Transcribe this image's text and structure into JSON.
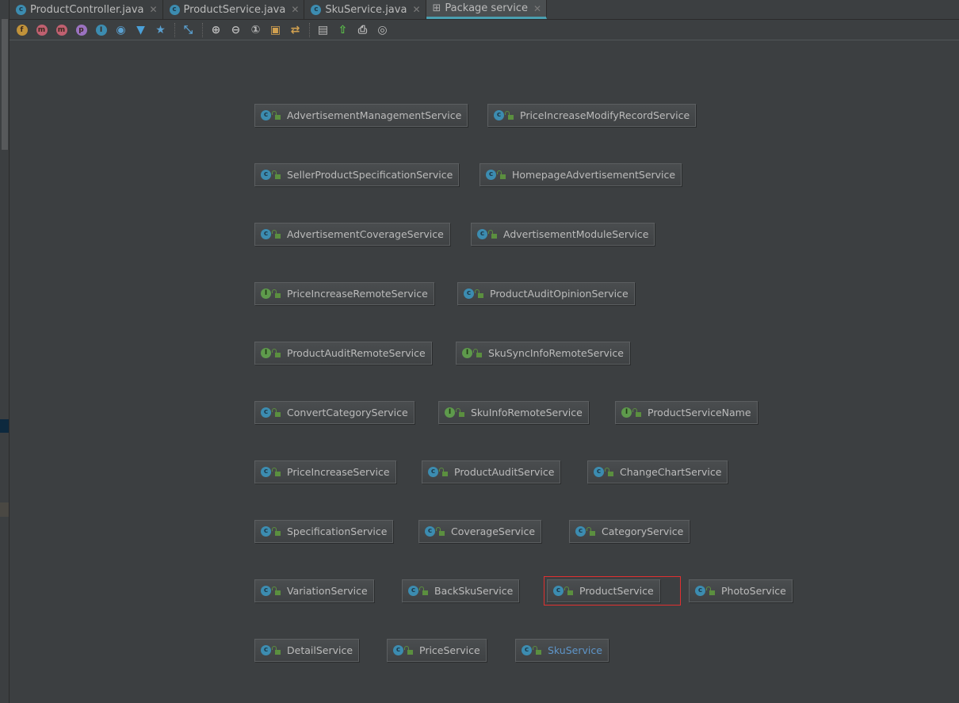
{
  "tabs": [
    {
      "label": "ProductController.java",
      "icon": "class-icon",
      "active": false
    },
    {
      "label": "ProductService.java",
      "icon": "class-icon",
      "active": false
    },
    {
      "label": "SkuService.java",
      "icon": "class-icon",
      "active": false
    },
    {
      "label": "Package service",
      "icon": "package-diagram-icon",
      "active": true
    }
  ],
  "toolbar": [
    {
      "name": "fields-icon",
      "glyph": "f",
      "color": "#c0923a"
    },
    {
      "name": "constructors-icon",
      "glyph": "m",
      "color": "#c06070"
    },
    {
      "name": "methods-icon",
      "glyph": "m",
      "color": "#c06070"
    },
    {
      "name": "properties-icon",
      "glyph": "p",
      "color": "#9a72c0"
    },
    {
      "name": "inner-classes-icon",
      "glyph": "I",
      "color": "#3c8cb0"
    },
    {
      "name": "visibility-icon",
      "glyph": "◉",
      "color": "#5aa0d0"
    },
    {
      "name": "filter-icon",
      "glyph": "▼",
      "color": "#4aa0d8"
    },
    {
      "name": "show-dependencies-icon",
      "glyph": "★",
      "color": "#5aa0d0"
    },
    {
      "name": "edge-icon",
      "glyph": "⤡",
      "color": "#5aa0d0"
    },
    {
      "name": "zoom-in-icon",
      "glyph": "⊕",
      "color": "#bbbbbb"
    },
    {
      "name": "zoom-out-icon",
      "glyph": "⊖",
      "color": "#bbbbbb"
    },
    {
      "name": "actual-size-icon",
      "glyph": "①",
      "color": "#bbbbbb"
    },
    {
      "name": "fit-content-icon",
      "glyph": "▣",
      "color": "#d0a050"
    },
    {
      "name": "apply-layout-icon",
      "glyph": "⇄",
      "color": "#d0a050"
    },
    {
      "name": "save-icon",
      "glyph": "▤",
      "color": "#bbbbbb"
    },
    {
      "name": "export-icon",
      "glyph": "⇧",
      "color": "#5bc04a"
    },
    {
      "name": "print-icon",
      "glyph": "⎙",
      "color": "#bbbbbb"
    },
    {
      "name": "print-preview-icon",
      "glyph": "◎",
      "color": "#bbbbbb"
    }
  ],
  "colors": {
    "class": "#3c8cb0",
    "interface": "#5e9a4c",
    "selection": "#e03030",
    "link": "#5e95c9"
  },
  "nodes": [
    {
      "label": "AdvertisementManagementService",
      "kind": "C"
    },
    {
      "label": "PriceIncreaseModifyRecordService",
      "kind": "C"
    },
    {
      "label": "SellerProductSpecificationService",
      "kind": "C"
    },
    {
      "label": "HomepageAdvertisementService",
      "kind": "C"
    },
    {
      "label": "AdvertisementCoverageService",
      "kind": "C"
    },
    {
      "label": "AdvertisementModuleService",
      "kind": "C"
    },
    {
      "label": "PriceIncreaseRemoteService",
      "kind": "I"
    },
    {
      "label": "ProductAuditOpinionService",
      "kind": "C"
    },
    {
      "label": "ProductAuditRemoteService",
      "kind": "I"
    },
    {
      "label": "SkuSyncInfoRemoteService",
      "kind": "I"
    },
    {
      "label": "ConvertCategoryService",
      "kind": "C"
    },
    {
      "label": "SkuInfoRemoteService",
      "kind": "I"
    },
    {
      "label": "ProductServiceName",
      "kind": "I"
    },
    {
      "label": "PriceIncreaseService",
      "kind": "C"
    },
    {
      "label": "ProductAuditService",
      "kind": "C"
    },
    {
      "label": "ChangeChartService",
      "kind": "C"
    },
    {
      "label": "SpecificationService",
      "kind": "C"
    },
    {
      "label": "CoverageService",
      "kind": "C"
    },
    {
      "label": "CategoryService",
      "kind": "C"
    },
    {
      "label": "VariationService",
      "kind": "C"
    },
    {
      "label": "BackSkuService",
      "kind": "C"
    },
    {
      "label": "ProductService",
      "kind": "C",
      "selected": true
    },
    {
      "label": "PhotoService",
      "kind": "C"
    },
    {
      "label": "DetailService",
      "kind": "C"
    },
    {
      "label": "PriceService",
      "kind": "C"
    },
    {
      "label": "SkuService",
      "kind": "C",
      "highlighted": true
    }
  ]
}
